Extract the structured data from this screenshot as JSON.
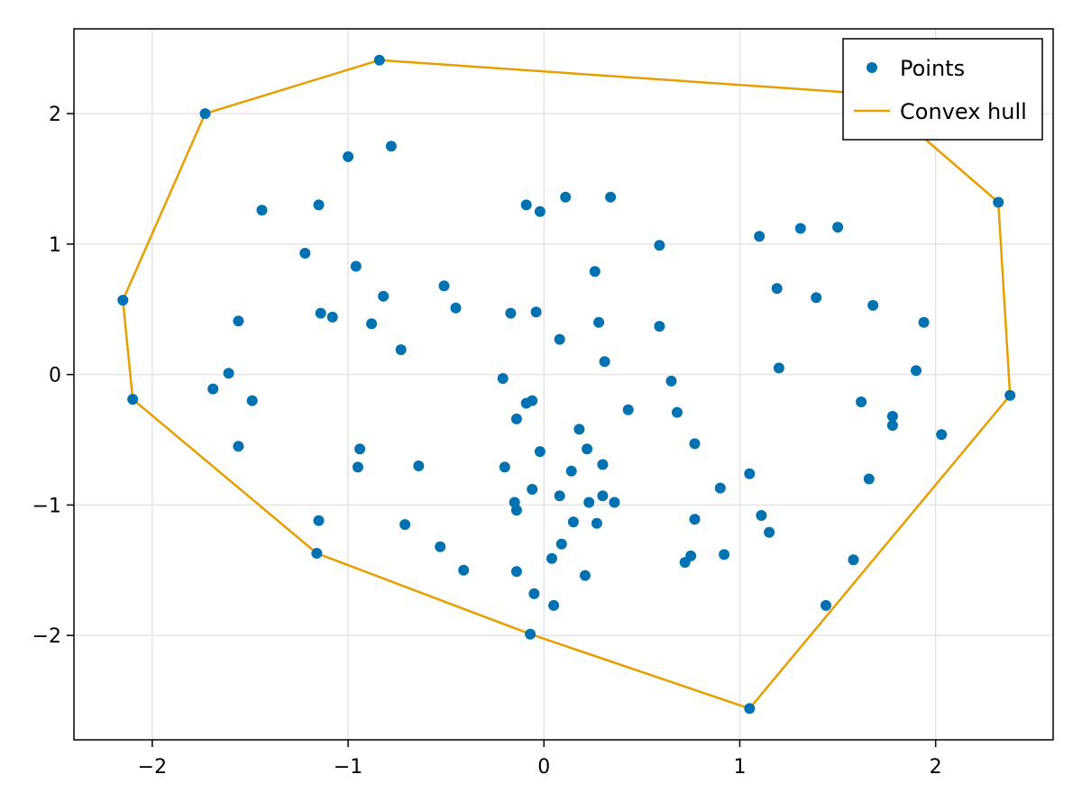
{
  "chart_data": {
    "type": "scatter",
    "xlim": [
      -2.4,
      2.6
    ],
    "ylim": [
      -2.8,
      2.65
    ],
    "xticks": [
      -2,
      -1,
      0,
      1,
      2
    ],
    "yticks": [
      -2,
      -1,
      0,
      1,
      2
    ],
    "xtick_labels": [
      "−2",
      "−1",
      "0",
      "1",
      "2"
    ],
    "ytick_labels": [
      "−2",
      "−1",
      "0",
      "1",
      "2"
    ],
    "grid": true,
    "legend_position": "top-right",
    "series": [
      {
        "name": "Points",
        "kind": "scatter",
        "color": "#0072b2",
        "points": [
          [
            -0.84,
            2.41
          ],
          [
            -1.73,
            2.0
          ],
          [
            -0.78,
            1.75
          ],
          [
            -1.0,
            1.67
          ],
          [
            -1.44,
            1.26
          ],
          [
            -1.15,
            1.3
          ],
          [
            -1.22,
            0.93
          ],
          [
            -0.96,
            0.83
          ],
          [
            -0.82,
            0.6
          ],
          [
            -1.14,
            0.47
          ],
          [
            -1.08,
            0.44
          ],
          [
            -0.88,
            0.39
          ],
          [
            -0.73,
            0.19
          ],
          [
            -1.56,
            0.41
          ],
          [
            -1.61,
            0.01
          ],
          [
            -1.69,
            -0.11
          ],
          [
            -1.49,
            -0.2
          ],
          [
            -1.56,
            -0.55
          ],
          [
            -0.94,
            -0.57
          ],
          [
            -0.95,
            -0.71
          ],
          [
            -0.64,
            -0.7
          ],
          [
            -0.71,
            -1.15
          ],
          [
            -0.53,
            -1.32
          ],
          [
            -0.41,
            -1.5
          ],
          [
            -1.15,
            -1.12
          ],
          [
            -1.16,
            -1.37
          ],
          [
            -2.15,
            0.57
          ],
          [
            -2.1,
            -0.19
          ],
          [
            -0.09,
            1.3
          ],
          [
            -0.02,
            1.25
          ],
          [
            0.11,
            1.36
          ],
          [
            0.34,
            1.36
          ],
          [
            0.59,
            0.99
          ],
          [
            0.26,
            0.79
          ],
          [
            -0.51,
            0.68
          ],
          [
            -0.45,
            0.51
          ],
          [
            -0.17,
            0.47
          ],
          [
            -0.04,
            0.48
          ],
          [
            0.28,
            0.4
          ],
          [
            0.59,
            0.37
          ],
          [
            0.08,
            0.27
          ],
          [
            0.31,
            0.1
          ],
          [
            -0.21,
            -0.03
          ],
          [
            -0.09,
            -0.22
          ],
          [
            -0.06,
            -0.2
          ],
          [
            -0.14,
            -0.34
          ],
          [
            0.65,
            -0.05
          ],
          [
            0.43,
            -0.27
          ],
          [
            0.68,
            -0.29
          ],
          [
            0.18,
            -0.42
          ],
          [
            0.22,
            -0.57
          ],
          [
            -0.02,
            -0.59
          ],
          [
            0.77,
            -0.53
          ],
          [
            0.14,
            -0.74
          ],
          [
            0.3,
            -0.69
          ],
          [
            -0.2,
            -0.71
          ],
          [
            -0.06,
            -0.88
          ],
          [
            0.08,
            -0.93
          ],
          [
            0.3,
            -0.93
          ],
          [
            0.36,
            -0.98
          ],
          [
            0.23,
            -0.98
          ],
          [
            -0.15,
            -0.98
          ],
          [
            -0.14,
            -1.04
          ],
          [
            0.15,
            -1.13
          ],
          [
            0.27,
            -1.14
          ],
          [
            0.77,
            -1.11
          ],
          [
            0.92,
            -1.38
          ],
          [
            0.75,
            -1.39
          ],
          [
            0.72,
            -1.44
          ],
          [
            0.09,
            -1.3
          ],
          [
            0.04,
            -1.41
          ],
          [
            -0.14,
            -1.51
          ],
          [
            0.21,
            -1.54
          ],
          [
            -0.05,
            -1.68
          ],
          [
            0.05,
            -1.77
          ],
          [
            -0.07,
            -1.99
          ],
          [
            1.1,
            1.06
          ],
          [
            1.31,
            1.12
          ],
          [
            1.5,
            1.13
          ],
          [
            1.19,
            0.66
          ],
          [
            1.39,
            0.59
          ],
          [
            1.68,
            0.53
          ],
          [
            1.94,
            0.4
          ],
          [
            1.2,
            0.05
          ],
          [
            1.9,
            0.03
          ],
          [
            1.62,
            -0.21
          ],
          [
            1.78,
            -0.32
          ],
          [
            1.78,
            -0.39
          ],
          [
            2.03,
            -0.46
          ],
          [
            1.05,
            -0.76
          ],
          [
            0.9,
            -0.87
          ],
          [
            1.66,
            -0.8
          ],
          [
            1.11,
            -1.08
          ],
          [
            1.15,
            -1.21
          ],
          [
            1.58,
            -1.42
          ],
          [
            1.44,
            -1.77
          ],
          [
            1.05,
            -2.56
          ],
          [
            2.32,
            1.32
          ],
          [
            2.38,
            -0.16
          ]
        ]
      },
      {
        "name": "Convex hull",
        "kind": "line",
        "color": "#e69f00",
        "points": [
          [
            -0.84,
            2.41
          ],
          [
            1.68,
            2.15
          ],
          [
            2.32,
            1.32
          ],
          [
            2.38,
            -0.16
          ],
          [
            1.05,
            -2.56
          ],
          [
            -0.07,
            -1.99
          ],
          [
            -1.16,
            -1.37
          ],
          [
            -2.1,
            -0.19
          ],
          [
            -2.15,
            0.57
          ],
          [
            -1.73,
            2.0
          ],
          [
            -0.84,
            2.41
          ]
        ]
      }
    ]
  }
}
